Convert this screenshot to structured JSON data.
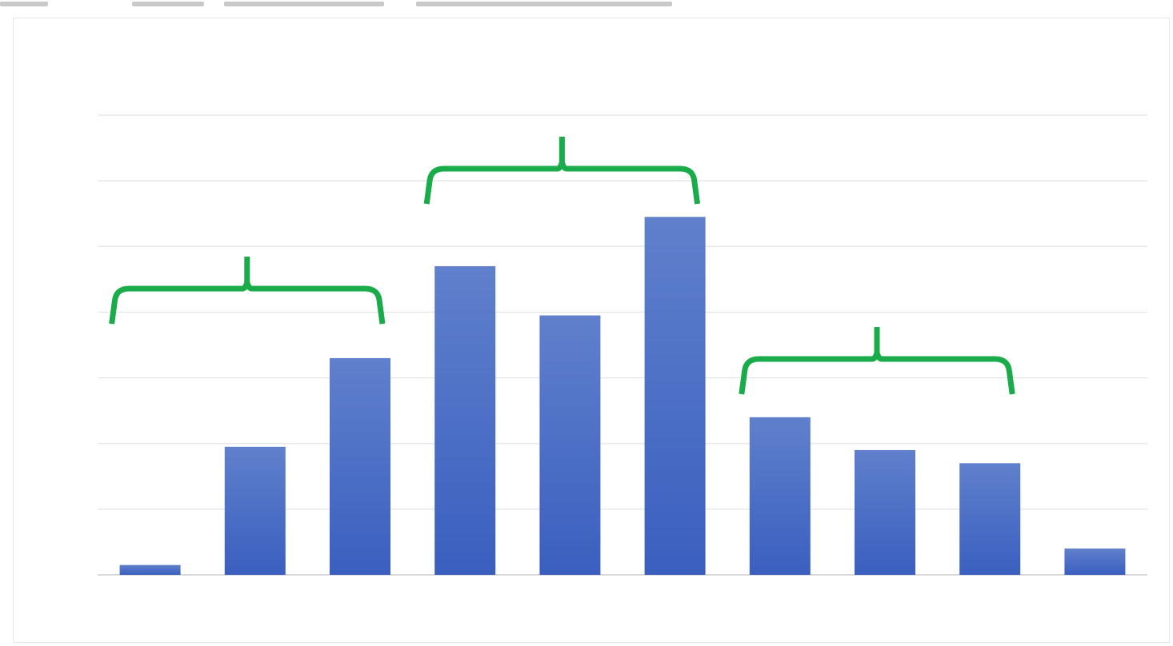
{
  "colors": {
    "bar_top": "#6080cc",
    "bar_bottom": "#3a5fbf",
    "bracket": "#1aab4a",
    "gridline": "#e3e3e3",
    "baseline": "#d9d9d9"
  },
  "chart_data": {
    "type": "bar",
    "title": "",
    "xlabel": "",
    "ylabel": "",
    "categories": [
      "",
      "",
      "",
      "",
      "",
      "",
      "",
      "",
      "",
      ""
    ],
    "values": [
      0.15,
      1.95,
      3.3,
      4.7,
      3.95,
      5.45,
      2.4,
      1.9,
      1.7,
      0.4
    ],
    "ylim": [
      0,
      7
    ],
    "grid": true,
    "legend": "none",
    "annotations": [
      {
        "type": "brace",
        "spans": [
          0,
          2
        ]
      },
      {
        "type": "brace",
        "spans": [
          3,
          5
        ]
      },
      {
        "type": "brace",
        "spans": [
          6,
          8
        ]
      }
    ]
  }
}
